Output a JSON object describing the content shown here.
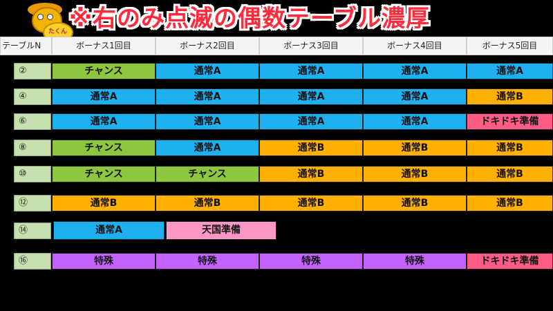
{
  "title": "※右のみ点滅の偶数テーブル濃厚",
  "mascot_label": "たくん",
  "header": {
    "col0": "テーブルN",
    "cols": [
      "ボーナス1回目",
      "ボーナス2回目",
      "ボーナス3回目",
      "ボーナス4回目",
      "ボーナス5回目"
    ]
  },
  "rows": [
    {
      "label": "②",
      "cells": [
        "チャンス",
        "通常A",
        "通常A",
        "通常A",
        "通常A"
      ]
    },
    {
      "label": "④",
      "cells": [
        "通常A",
        "通常A",
        "通常A",
        "通常A",
        "通常B"
      ]
    },
    {
      "label": "⑥",
      "cells": [
        "通常A",
        "通常A",
        "通常A",
        "通常A",
        "ドキドキ準備"
      ]
    },
    {
      "label": "⑧",
      "cells": [
        "チャンス",
        "通常A",
        "通常B",
        "通常B",
        "通常B"
      ]
    },
    {
      "label": "⑩",
      "cells": [
        "チャンス",
        "チャンス",
        "通常B",
        "通常B",
        "通常B"
      ]
    },
    {
      "label": "⑫",
      "cells": [
        "通常B",
        "通常B",
        "通常B",
        "通常B",
        "通常B"
      ]
    },
    {
      "label": "⑭",
      "cells": [
        "通常A",
        "天国準備"
      ]
    },
    {
      "label": "⑯",
      "cells": [
        "特殊",
        "特殊",
        "特殊",
        "特殊",
        "ドキドキ準備"
      ]
    }
  ],
  "colors": {
    "通常A": "#1fb0f0",
    "通常B": "#ffb000",
    "チャンス": "#8dc63f",
    "ドキドキ準備": "#ff5d86",
    "天国準備": "#ff97c5",
    "特殊": "#c462ff"
  }
}
